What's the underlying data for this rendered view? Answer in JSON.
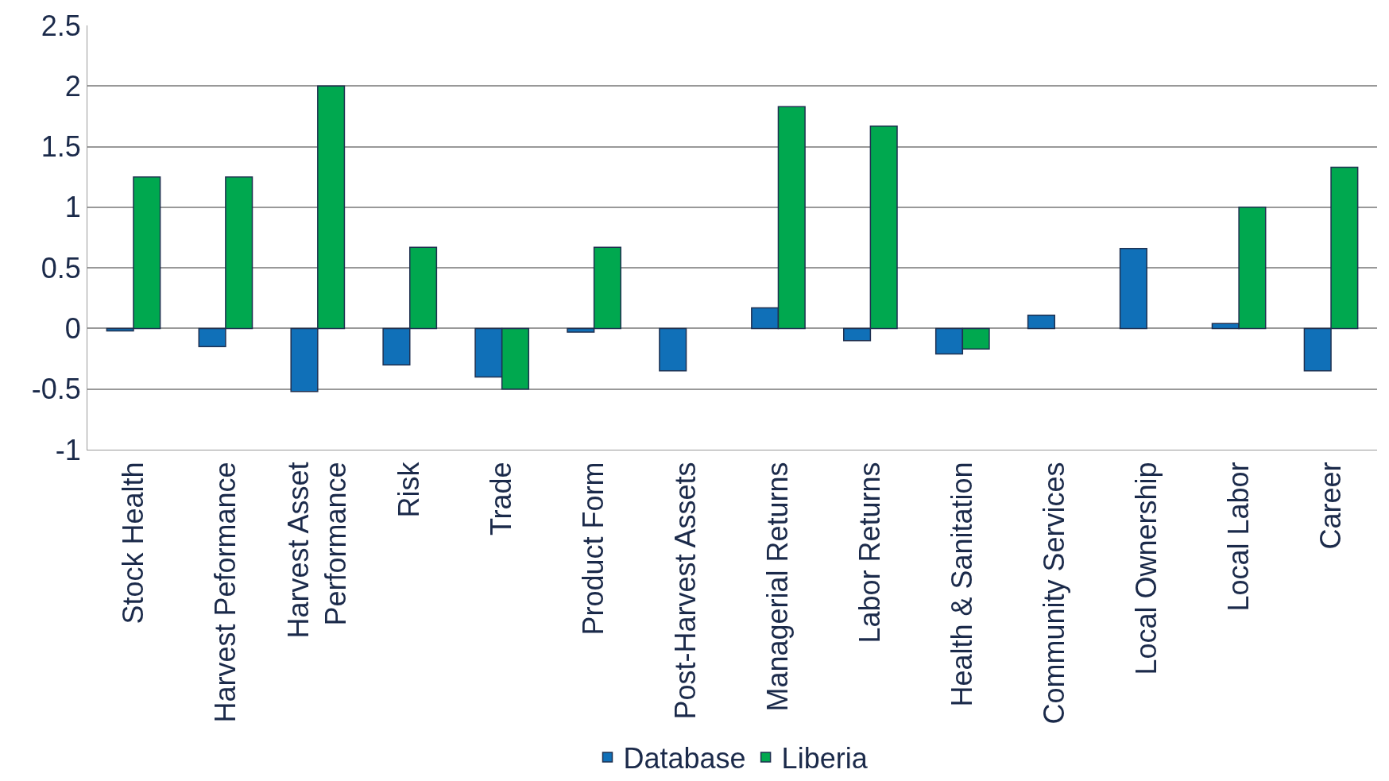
{
  "chart_data": {
    "type": "bar",
    "categories": [
      "Stock Health",
      "Harvest Peformance",
      "Harvest Asset\nPerformance",
      "Risk",
      "Trade",
      "Product Form",
      "Post-Harvest Assets",
      "Managerial Returns",
      "Labor Returns",
      "Health & Sanitation",
      "Community Services",
      "Local Ownership",
      "Local Labor",
      "Career"
    ],
    "series": [
      {
        "name": "Database",
        "color": "#1070b8",
        "values": [
          -0.02,
          -0.15,
          -0.52,
          -0.3,
          -0.4,
          -0.03,
          -0.35,
          0.17,
          -0.1,
          -0.21,
          0.11,
          0.66,
          0.04,
          -0.35
        ]
      },
      {
        "name": "Liberia",
        "color": "#00a84f",
        "values": [
          1.25,
          1.25,
          2,
          0.67,
          -0.5,
          0.67,
          null,
          1.83,
          1.67,
          -0.17,
          null,
          null,
          1,
          1.33
        ]
      }
    ],
    "ylim": [
      -1,
      2.5
    ],
    "yticks": [
      -1,
      -0.5,
      0,
      0.5,
      1,
      1.5,
      2,
      2.5
    ],
    "grid": "y",
    "legend": "bottom"
  }
}
